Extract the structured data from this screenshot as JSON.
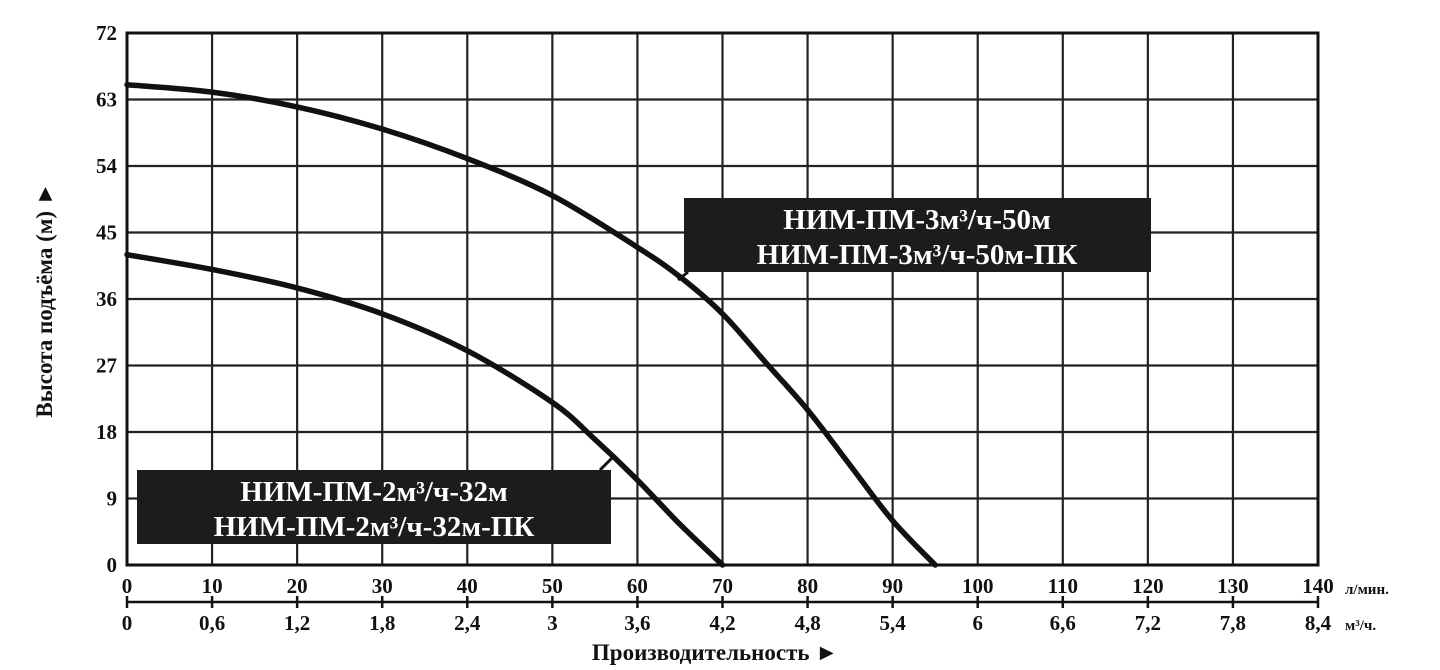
{
  "chart_data": {
    "type": "line",
    "ylabel": "Высота подъёма (м) ►",
    "xlabel": "Производительность ►",
    "x_unit_primary": "л/мин.",
    "x_unit_secondary": "м³/ч.",
    "xlim": [
      0,
      140
    ],
    "ylim": [
      0,
      72
    ],
    "grid": true,
    "y_ticks": [
      "0",
      "9",
      "18",
      "27",
      "36",
      "45",
      "54",
      "63",
      "72"
    ],
    "x_ticks_primary": [
      "0",
      "10",
      "20",
      "30",
      "40",
      "50",
      "60",
      "70",
      "80",
      "90",
      "100",
      "110",
      "120",
      "130",
      "140"
    ],
    "x_ticks_secondary": [
      "0",
      "0,6",
      "1,2",
      "1,8",
      "2,4",
      "3",
      "3,6",
      "4,2",
      "4,8",
      "5,4",
      "6",
      "6,6",
      "7,2",
      "7,8",
      "8,4"
    ],
    "series": [
      {
        "name": "НИМ-ПМ-3м³/ч-50м\nНИМ-ПМ-3м³/ч-50м-ПК",
        "label_lines": [
          "НИМ-ПМ-3м³/ч-50м",
          "НИМ-ПМ-3м³/ч-50м-ПК"
        ],
        "x": [
          0,
          10,
          20,
          30,
          40,
          50,
          60,
          65,
          70,
          75,
          80,
          85,
          90,
          95
        ],
        "y": [
          65,
          64,
          62,
          59,
          55,
          50,
          43,
          39,
          34,
          27.5,
          21,
          13.5,
          6,
          0
        ]
      },
      {
        "name": "НИМ-ПМ-2м³/ч-32м\nНИМ-ПМ-2м³/ч-32м-ПК",
        "label_lines": [
          "НИМ-ПМ-2м³/ч-32м",
          "НИМ-ПМ-2м³/ч-32м-ПК"
        ],
        "x": [
          0,
          10,
          20,
          30,
          40,
          50,
          55,
          60,
          65,
          70
        ],
        "y": [
          42,
          40,
          37.5,
          34,
          29,
          22,
          17,
          11.5,
          5.5,
          0
        ]
      }
    ]
  }
}
